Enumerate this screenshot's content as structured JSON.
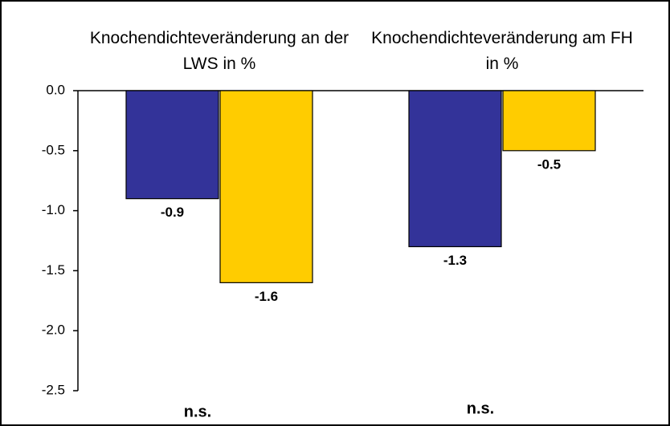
{
  "chart_data": {
    "type": "bar",
    "categories": [
      "Knochendichteveränderung an der LWS in %",
      "Knochendichteveränderung am FH in %"
    ],
    "series": [
      {
        "color": "#333399",
        "values": [
          -0.9,
          -1.3
        ]
      },
      {
        "color": "#ffcc00",
        "values": [
          -1.6,
          -0.5
        ]
      }
    ],
    "ylim": [
      -2.5,
      0
    ],
    "yticks": [
      {
        "value": 0,
        "label": "0.0"
      },
      -0.5,
      {
        "value": -1,
        "label": "-1.0"
      },
      -1.5,
      {
        "value": -2,
        "label": "-2.0"
      },
      -2.5
    ],
    "annotations": [
      "n.s.",
      "n.s."
    ],
    "grid": false
  }
}
